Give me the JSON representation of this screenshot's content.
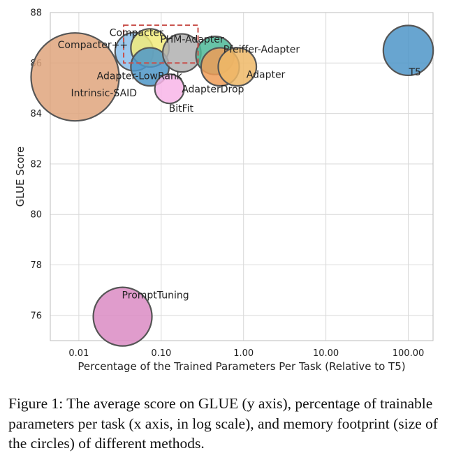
{
  "chart_data": {
    "type": "scatter",
    "xlabel": "Percentage of the Trained Parameters Per Task (Relative to T5)",
    "ylabel": "GLUE Score",
    "x_scale": "log",
    "xlim": [
      0.0045,
      200
    ],
    "ylim": [
      75,
      88
    ],
    "x_ticks": [
      0.01,
      0.1,
      1,
      10,
      100
    ],
    "x_tick_labels": [
      "0.01",
      "0.10",
      "1.00",
      "10.00",
      "100.00"
    ],
    "y_ticks": [
      76,
      78,
      80,
      82,
      84,
      86,
      88
    ],
    "y_tick_labels": [
      "76",
      "78",
      "80",
      "82",
      "84",
      "86",
      "88"
    ],
    "grid": true,
    "highlight_box": {
      "x": [
        0.035,
        0.28
      ],
      "y": [
        86.0,
        87.5
      ],
      "color": "#c8504b"
    },
    "points": [
      {
        "name": "Intrinsic-SAID",
        "x": 0.009,
        "y": 85.45,
        "size": 3.0,
        "color": "#dfa57c"
      },
      {
        "name": "PromptTuning",
        "x": 0.034,
        "y": 75.95,
        "size": 2.0,
        "color": "#da8bc3"
      },
      {
        "name": "Compacter++",
        "x": 0.047,
        "y": 86.45,
        "size": 1.3,
        "color": "#8cc0eb"
      },
      {
        "name": "Compacter",
        "x": 0.073,
        "y": 86.6,
        "size": 1.3,
        "color": "#f2eb7a"
      },
      {
        "name": "Adapter-LowRank",
        "x": 0.073,
        "y": 85.85,
        "size": 1.3,
        "color": "#4e97c8"
      },
      {
        "name": "BitFit",
        "x": 0.126,
        "y": 84.98,
        "size": 1.0,
        "color": "#f8b5e8"
      },
      {
        "name": "PHM-Adapter",
        "x": 0.178,
        "y": 86.4,
        "size": 1.3,
        "color": "#b0b0b0"
      },
      {
        "name": "Pfeiffer-Adapter",
        "x": 0.45,
        "y": 86.3,
        "size": 1.3,
        "color": "#4cb898"
      },
      {
        "name": "AdapterDrop",
        "x": 0.52,
        "y": 85.85,
        "size": 1.3,
        "color": "#ef9c57"
      },
      {
        "name": "Adapter",
        "x": 0.84,
        "y": 85.85,
        "size": 1.3,
        "color": "#efb867"
      },
      {
        "name": "T5",
        "x": 100,
        "y": 86.5,
        "size": 1.7,
        "color": "#4d95c8"
      }
    ]
  },
  "caption": "Figure 1: The average score on GLUE (y axis), percentage of trainable parameters per task (x axis, in log scale), and memory footprint (size of the circles) of different methods."
}
